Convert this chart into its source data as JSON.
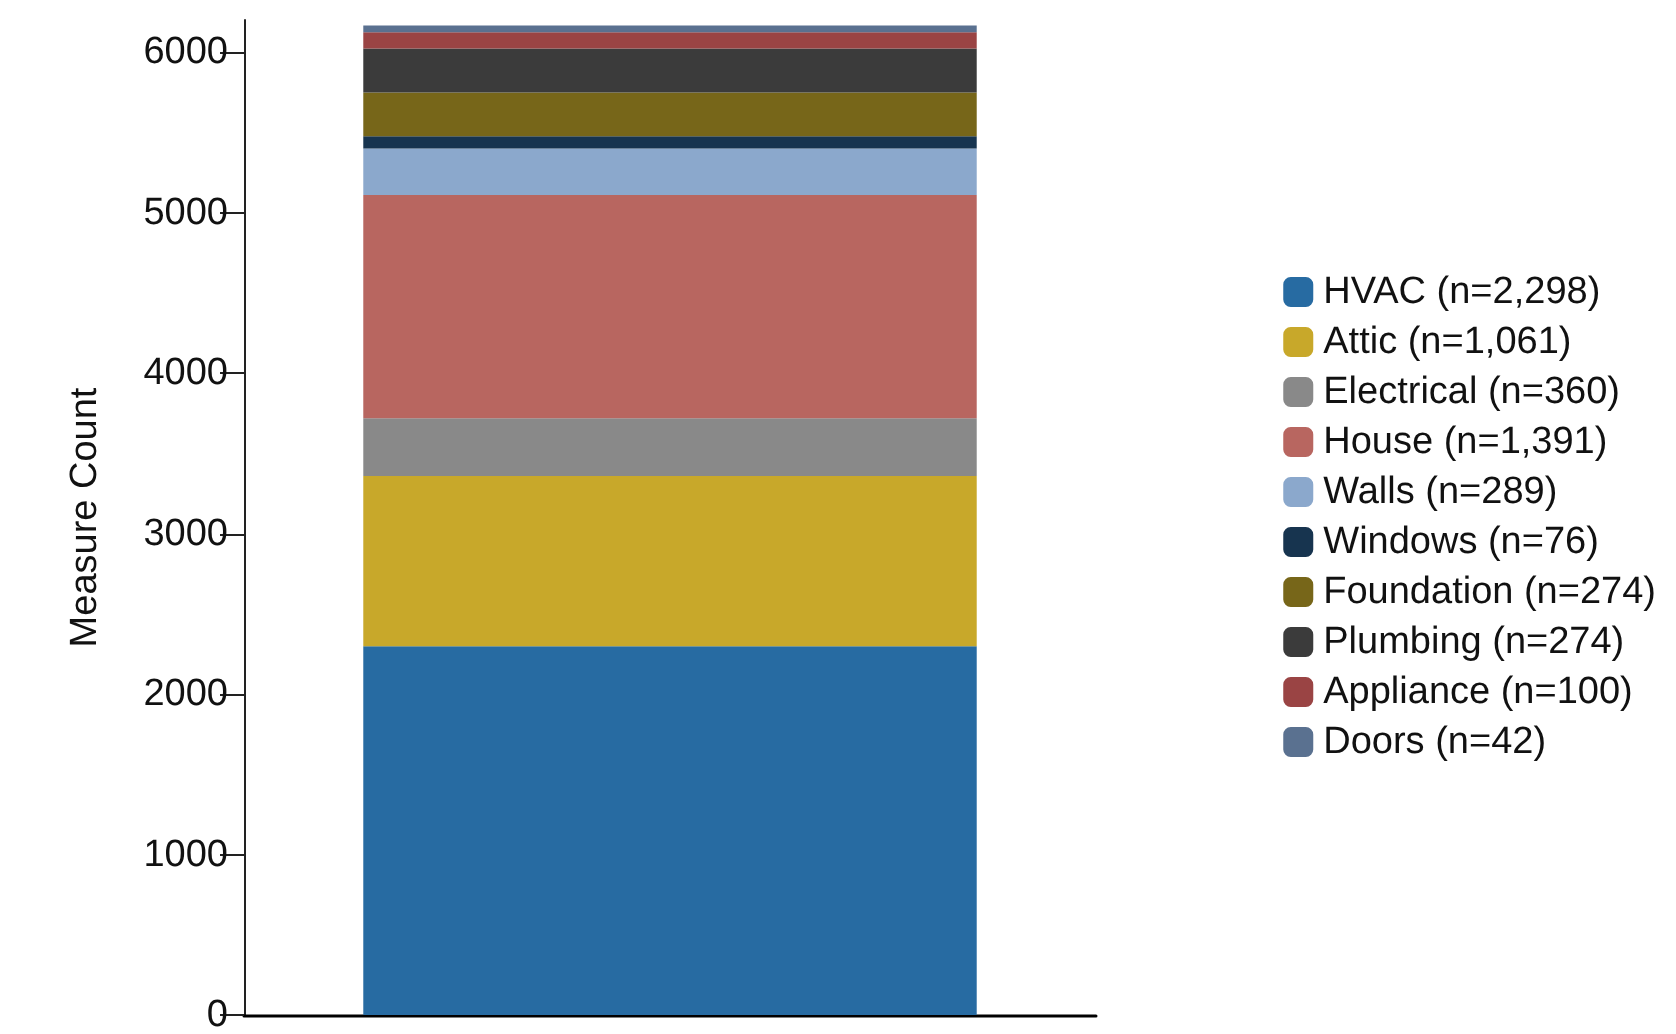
{
  "chart_data": {
    "type": "bar",
    "ylabel": "Measure Count",
    "categories": [
      null
    ],
    "stacked": true,
    "ylim": [
      0,
      6200
    ],
    "yticks": [
      0,
      1000,
      2000,
      3000,
      4000,
      5000,
      6000
    ],
    "grid": false,
    "legend": "right",
    "tick_labels": "y",
    "series": [
      {
        "name": "HVAC (n=2,298)",
        "color": "#276ba2",
        "values": [
          2298
        ]
      },
      {
        "name": "Attic (n=1,061)",
        "color": "#c8a82a",
        "values": [
          1061
        ]
      },
      {
        "name": "Electrical (n=360)",
        "color": "#898989",
        "values": [
          360
        ]
      },
      {
        "name": "House (n=1,391)",
        "color": "#b86660",
        "values": [
          1391
        ]
      },
      {
        "name": "Walls (n=289)",
        "color": "#8ba8cc",
        "values": [
          289
        ]
      },
      {
        "name": "Windows (n=76)",
        "color": "#17344f",
        "values": [
          76
        ]
      },
      {
        "name": "Foundation (n=274)",
        "color": "#776619",
        "values": [
          274
        ]
      },
      {
        "name": "Plumbing (n=274)",
        "color": "#3b3b3b",
        "values": [
          274
        ]
      },
      {
        "name": "Appliance (n=100)",
        "color": "#9a4444",
        "values": [
          100
        ]
      },
      {
        "name": "Doors (n=42)",
        "color": "#5a7190",
        "values": [
          42
        ]
      }
    ]
  }
}
